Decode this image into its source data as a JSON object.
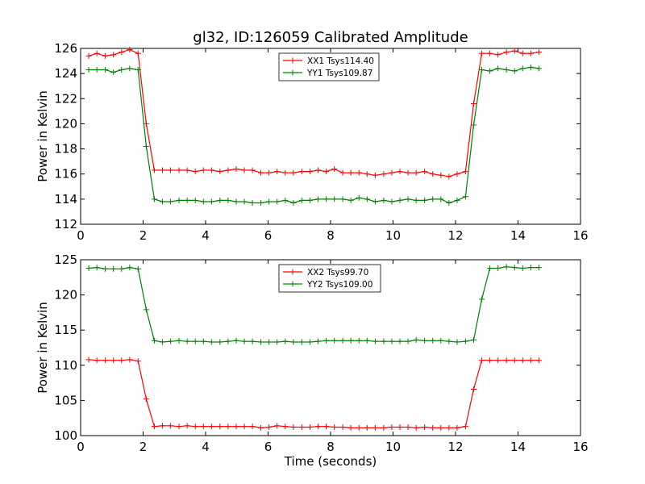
{
  "figure": {
    "title": "gl32, ID:126059 Calibrated Amplitude"
  },
  "chart_data": [
    {
      "type": "line",
      "title": "gl32, ID:126059 Calibrated Amplitude",
      "xlabel": "",
      "ylabel": "Power in Kelvin",
      "xlim": [
        0,
        16
      ],
      "ylim": [
        112,
        126
      ],
      "xticks": [
        0,
        2,
        4,
        6,
        8,
        10,
        12,
        14,
        16
      ],
      "yticks": [
        112,
        114,
        116,
        118,
        120,
        122,
        124,
        126
      ],
      "grid": false,
      "legend_position": "top-center",
      "x": [
        0.26,
        0.52,
        0.79,
        1.05,
        1.31,
        1.57,
        1.84,
        2.1,
        2.36,
        2.62,
        2.88,
        3.15,
        3.41,
        3.67,
        3.93,
        4.19,
        4.46,
        4.72,
        4.98,
        5.24,
        5.5,
        5.77,
        6.03,
        6.29,
        6.55,
        6.81,
        7.08,
        7.34,
        7.6,
        7.86,
        8.12,
        8.39,
        8.65,
        8.91,
        9.17,
        9.43,
        9.7,
        9.96,
        10.22,
        10.48,
        10.74,
        11.01,
        11.27,
        11.53,
        11.79,
        12.05,
        12.32,
        12.58,
        12.84,
        13.1,
        13.36,
        13.63,
        13.89,
        14.15,
        14.41,
        14.67
      ],
      "series": [
        {
          "name": "XX1 Tsys114.40",
          "color": "#ff0000",
          "values": [
            125.4,
            125.6,
            125.4,
            125.5,
            125.7,
            125.9,
            125.6,
            120.0,
            116.3,
            116.3,
            116.3,
            116.3,
            116.3,
            116.2,
            116.3,
            116.3,
            116.2,
            116.3,
            116.4,
            116.3,
            116.3,
            116.1,
            116.1,
            116.2,
            116.1,
            116.1,
            116.2,
            116.2,
            116.3,
            116.2,
            116.4,
            116.1,
            116.1,
            116.1,
            116.0,
            115.9,
            116.0,
            116.1,
            116.2,
            116.1,
            116.1,
            116.2,
            116.0,
            115.9,
            115.8,
            116.0,
            116.2,
            121.6,
            125.6,
            125.6,
            125.5,
            125.7,
            125.8,
            125.6,
            125.6,
            125.7
          ]
        },
        {
          "name": "YY1 Tsys109.87",
          "color": "#008000",
          "values": [
            124.3,
            124.3,
            124.3,
            124.1,
            124.3,
            124.4,
            124.3,
            118.2,
            114.0,
            113.8,
            113.8,
            113.9,
            113.9,
            113.9,
            113.8,
            113.8,
            113.9,
            113.9,
            113.8,
            113.8,
            113.7,
            113.7,
            113.8,
            113.8,
            113.9,
            113.7,
            113.9,
            113.9,
            114.0,
            114.0,
            114.0,
            114.0,
            113.9,
            114.1,
            114.0,
            113.8,
            113.9,
            113.8,
            113.9,
            114.0,
            113.9,
            113.9,
            114.0,
            114.0,
            113.7,
            113.9,
            114.2,
            119.9,
            124.3,
            124.2,
            124.4,
            124.3,
            124.2,
            124.4,
            124.5,
            124.4
          ]
        }
      ]
    },
    {
      "type": "line",
      "title": "",
      "xlabel": "Time (seconds)",
      "ylabel": "Power in Kelvin",
      "xlim": [
        0,
        16
      ],
      "ylim": [
        100,
        125
      ],
      "xticks": [
        0,
        2,
        4,
        6,
        8,
        10,
        12,
        14,
        16
      ],
      "yticks": [
        100,
        105,
        110,
        115,
        120,
        125
      ],
      "grid": false,
      "legend_position": "top-center",
      "x": [
        0.26,
        0.52,
        0.79,
        1.05,
        1.31,
        1.57,
        1.84,
        2.1,
        2.36,
        2.62,
        2.88,
        3.15,
        3.41,
        3.67,
        3.93,
        4.19,
        4.46,
        4.72,
        4.98,
        5.24,
        5.5,
        5.77,
        6.03,
        6.29,
        6.55,
        6.81,
        7.08,
        7.34,
        7.6,
        7.86,
        8.12,
        8.39,
        8.65,
        8.91,
        9.17,
        9.43,
        9.7,
        9.96,
        10.22,
        10.48,
        10.74,
        11.01,
        11.27,
        11.53,
        11.79,
        12.05,
        12.32,
        12.58,
        12.84,
        13.1,
        13.36,
        13.63,
        13.89,
        14.15,
        14.41,
        14.67
      ],
      "series": [
        {
          "name": "XX2 Tsys99.70",
          "color": "#ff0000",
          "values": [
            110.8,
            110.7,
            110.7,
            110.7,
            110.7,
            110.8,
            110.6,
            105.2,
            101.3,
            101.4,
            101.4,
            101.3,
            101.4,
            101.3,
            101.3,
            101.3,
            101.3,
            101.3,
            101.3,
            101.3,
            101.3,
            101.1,
            101.2,
            101.4,
            101.3,
            101.2,
            101.2,
            101.2,
            101.3,
            101.3,
            101.2,
            101.2,
            101.1,
            101.1,
            101.1,
            101.1,
            101.1,
            101.2,
            101.2,
            101.2,
            101.1,
            101.2,
            101.1,
            101.1,
            101.1,
            101.1,
            101.3,
            106.6,
            110.7,
            110.7,
            110.7,
            110.7,
            110.7,
            110.7,
            110.7,
            110.7
          ]
        },
        {
          "name": "YY2 Tsys109.00",
          "color": "#008000",
          "values": [
            123.8,
            123.9,
            123.7,
            123.7,
            123.7,
            123.9,
            123.7,
            117.9,
            113.5,
            113.3,
            113.4,
            113.5,
            113.4,
            113.4,
            113.4,
            113.3,
            113.3,
            113.4,
            113.5,
            113.4,
            113.4,
            113.3,
            113.3,
            113.3,
            113.4,
            113.3,
            113.3,
            113.3,
            113.4,
            113.5,
            113.5,
            113.5,
            113.5,
            113.5,
            113.5,
            113.4,
            113.4,
            113.4,
            113.4,
            113.4,
            113.6,
            113.5,
            113.5,
            113.5,
            113.4,
            113.3,
            113.4,
            113.6,
            119.4,
            123.8,
            123.8,
            124.0,
            123.9,
            123.8,
            123.9,
            123.9
          ]
        }
      ]
    }
  ]
}
